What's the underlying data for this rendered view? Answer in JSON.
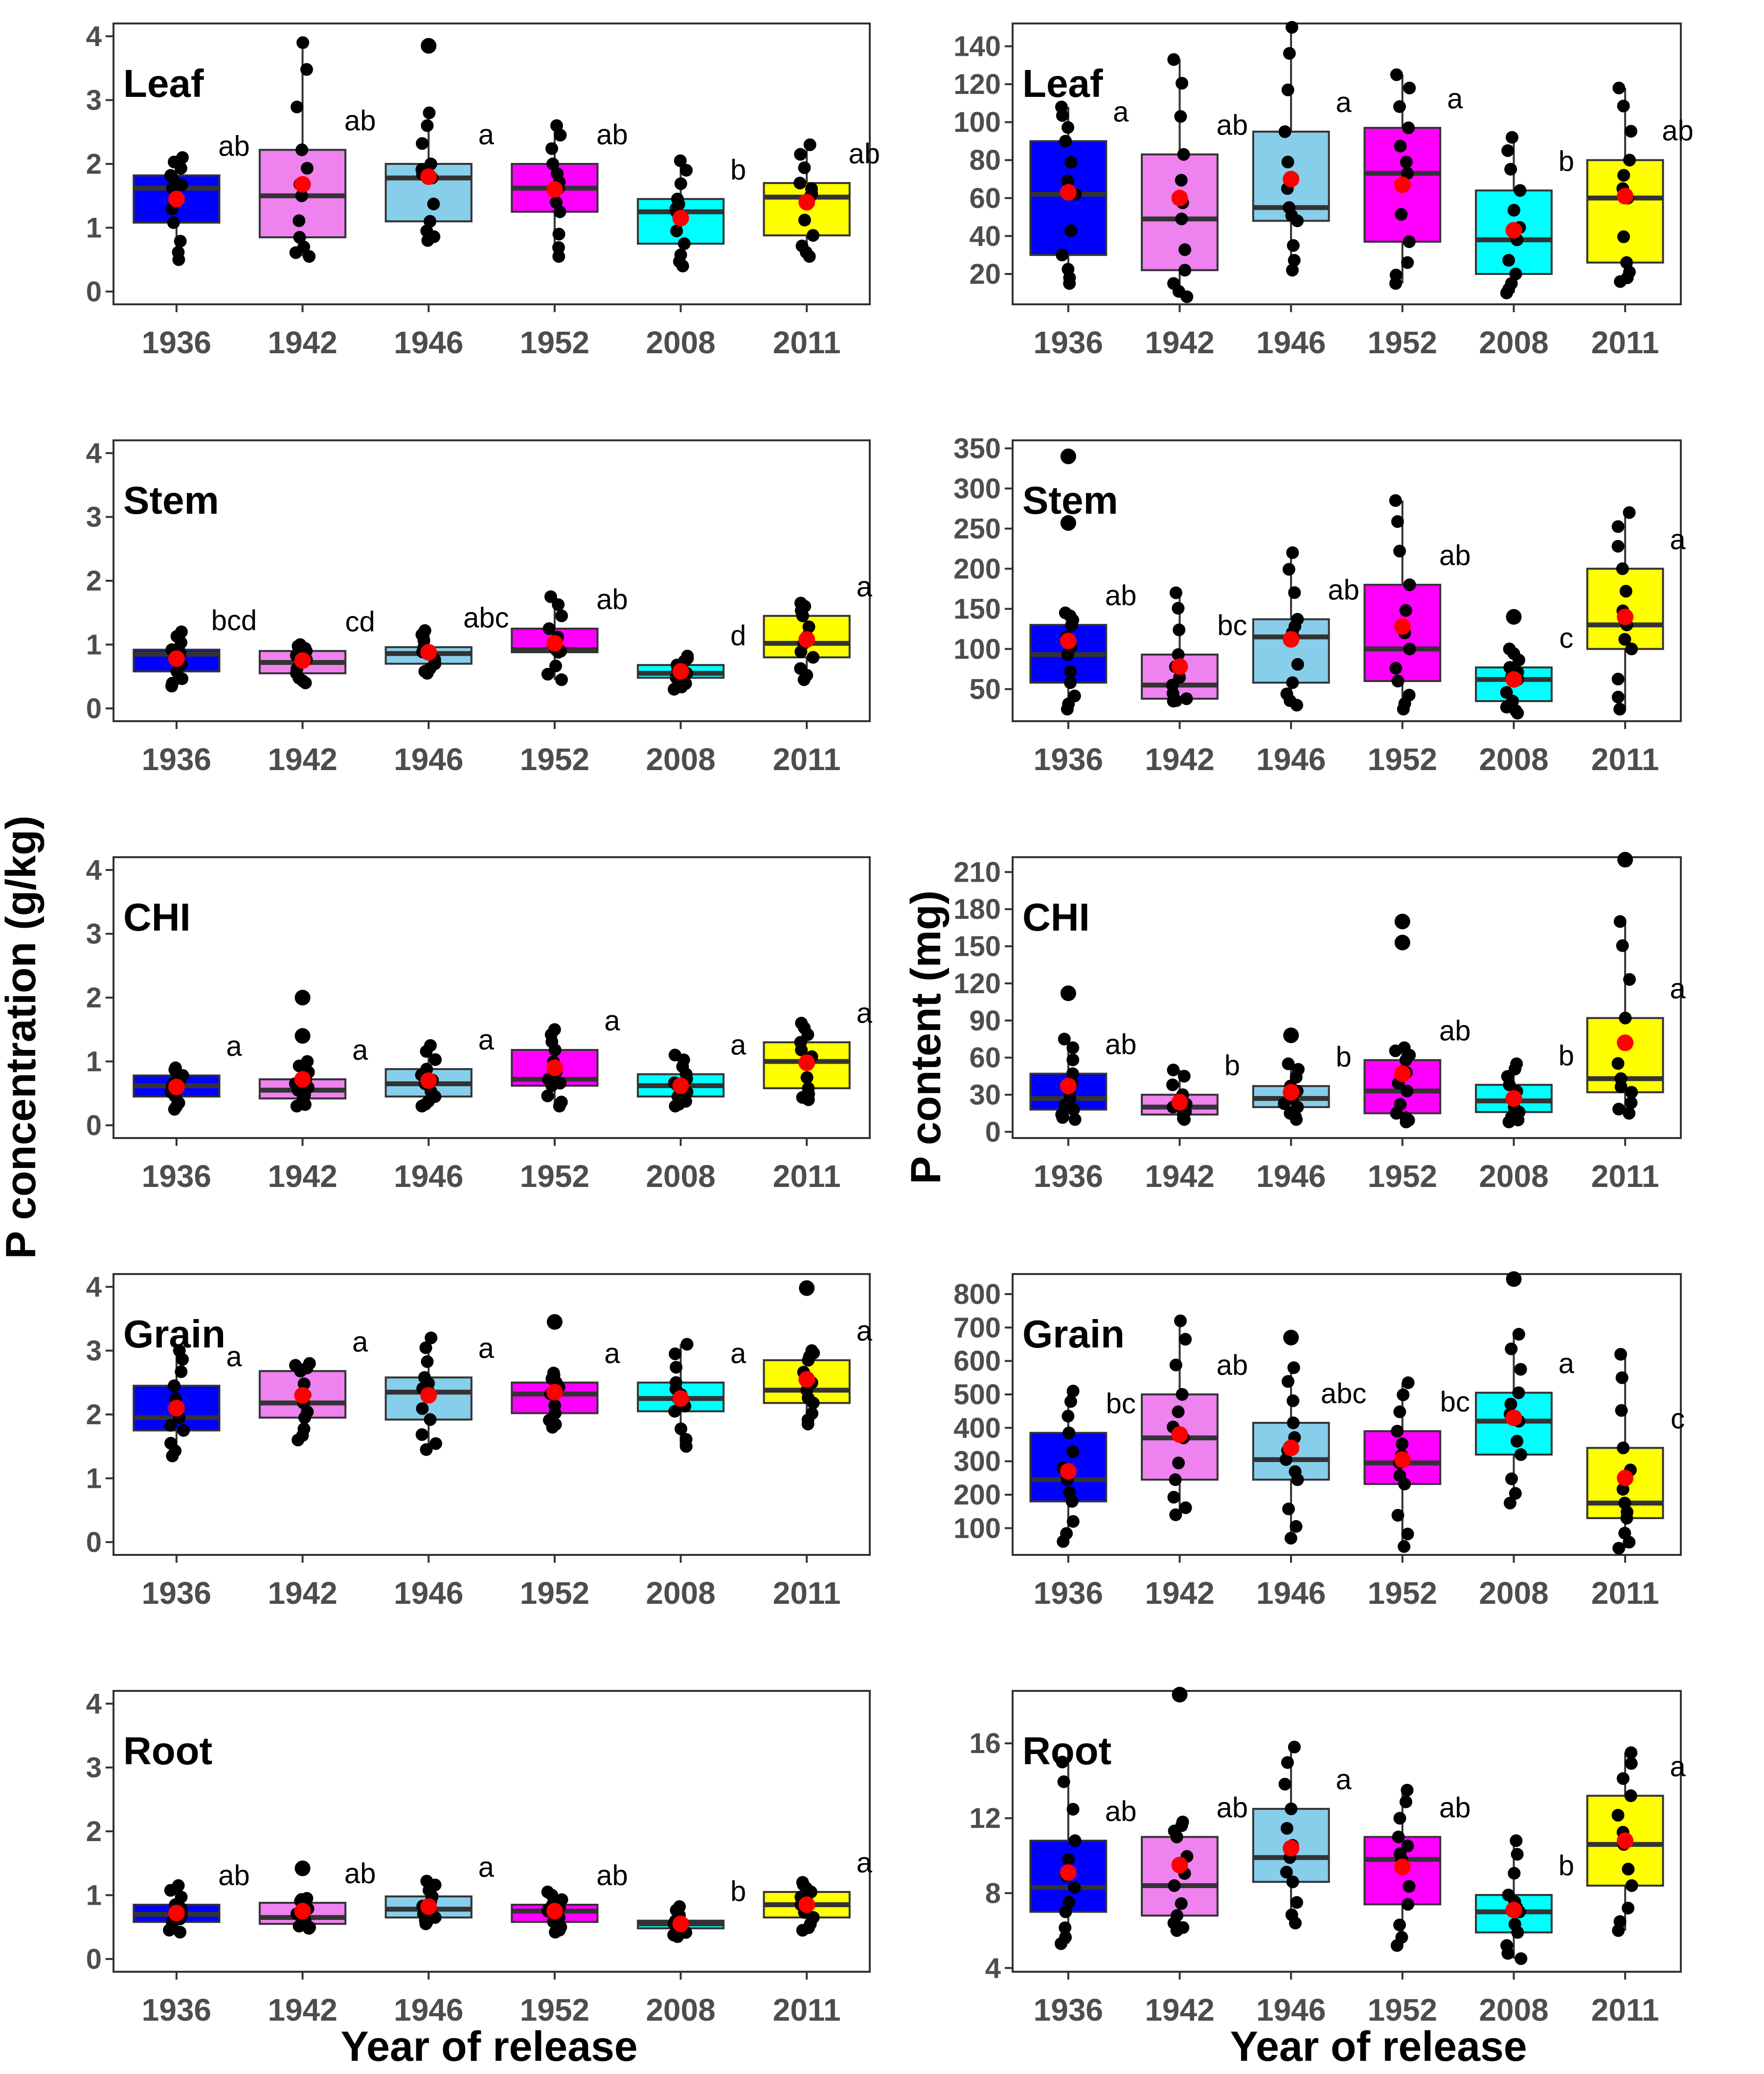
{
  "figure": {
    "left_ylabel": "P concentration (g/kg)",
    "right_ylabel": "P content (mg)",
    "xlabel": "Year of release"
  },
  "colors": {
    "1936": "#0000ff",
    "1942": "#ee82ee",
    "1946": "#87ceeb",
    "1952": "#ff00ff",
    "2008": "#00ffff",
    "2011": "#ffff00",
    "mean": "#ff0000",
    "point": "#000000",
    "median": "#333333"
  },
  "chart_data": [
    {
      "type": "box",
      "title": "Leaf",
      "column": "left",
      "row": 0,
      "ylabel": "P concentration (g/kg)",
      "xlabel": "Year of release",
      "categories": [
        "1936",
        "1942",
        "1946",
        "1952",
        "2008",
        "2011"
      ],
      "yticks": [
        0,
        1,
        2,
        3,
        4
      ],
      "ylim": [
        -0.2,
        4.2
      ],
      "boxes": [
        {
          "q1": 1.08,
          "median": 1.62,
          "q3": 1.82,
          "wlo": 0.5,
          "whi": 2.1,
          "mean": 1.45,
          "letter": "ab"
        },
        {
          "q1": 0.85,
          "median": 1.5,
          "q3": 2.22,
          "wlo": 0.55,
          "whi": 3.9,
          "mean": 1.68,
          "letter": "ab"
        },
        {
          "q1": 1.1,
          "median": 1.78,
          "q3": 2.0,
          "wlo": 0.8,
          "whi": 2.8,
          "mean": 1.8,
          "letter": "a"
        },
        {
          "q1": 1.25,
          "median": 1.62,
          "q3": 2.0,
          "wlo": 0.55,
          "whi": 2.6,
          "mean": 1.6,
          "letter": "ab"
        },
        {
          "q1": 0.75,
          "median": 1.25,
          "q3": 1.45,
          "wlo": 0.4,
          "whi": 2.05,
          "mean": 1.15,
          "letter": "b"
        },
        {
          "q1": 0.88,
          "median": 1.48,
          "q3": 1.7,
          "wlo": 0.55,
          "whi": 2.3,
          "mean": 1.4,
          "letter": "ab"
        }
      ],
      "outliers": [
        [],
        [],
        [
          3.85
        ],
        [],
        [],
        []
      ]
    },
    {
      "type": "box",
      "title": "Leaf",
      "column": "right",
      "row": 0,
      "ylabel": "P content (mg)",
      "xlabel": "Year of release",
      "categories": [
        "1936",
        "1942",
        "1946",
        "1952",
        "2008",
        "2011"
      ],
      "yticks": [
        20,
        40,
        60,
        80,
        100,
        120,
        140
      ],
      "ylim": [
        4,
        152
      ],
      "boxes": [
        {
          "q1": 30,
          "median": 62,
          "q3": 90,
          "wlo": 15,
          "whi": 108,
          "mean": 63,
          "letter": "a"
        },
        {
          "q1": 22,
          "median": 49,
          "q3": 83,
          "wlo": 8,
          "whi": 133,
          "mean": 60,
          "letter": "ab"
        },
        {
          "q1": 48,
          "median": 55,
          "q3": 95,
          "wlo": 22,
          "whi": 150,
          "mean": 70,
          "letter": "a"
        },
        {
          "q1": 37,
          "median": 73,
          "q3": 97,
          "wlo": 15,
          "whi": 125,
          "mean": 67,
          "letter": "a"
        },
        {
          "q1": 20,
          "median": 38,
          "q3": 64,
          "wlo": 10,
          "whi": 92,
          "mean": 43,
          "letter": "b"
        },
        {
          "q1": 26,
          "median": 60,
          "q3": 80,
          "wlo": 16,
          "whi": 118,
          "mean": 61,
          "letter": "ab"
        }
      ],
      "outliers": [
        [],
        [],
        [],
        [],
        [],
        []
      ]
    },
    {
      "type": "box",
      "title": "Stem",
      "column": "left",
      "row": 1,
      "ylabel": "P concentration (g/kg)",
      "xlabel": "Year of release",
      "categories": [
        "1936",
        "1942",
        "1946",
        "1952",
        "2008",
        "2011"
      ],
      "yticks": [
        0,
        1,
        2,
        3,
        4
      ],
      "ylim": [
        -0.2,
        4.2
      ],
      "boxes": [
        {
          "q1": 0.58,
          "median": 0.85,
          "q3": 0.92,
          "wlo": 0.35,
          "whi": 1.2,
          "mean": 0.78,
          "letter": "bcd"
        },
        {
          "q1": 0.55,
          "median": 0.72,
          "q3": 0.9,
          "wlo": 0.4,
          "whi": 1.0,
          "mean": 0.75,
          "letter": "cd"
        },
        {
          "q1": 0.7,
          "median": 0.86,
          "q3": 0.96,
          "wlo": 0.55,
          "whi": 1.22,
          "mean": 0.88,
          "letter": "abc"
        },
        {
          "q1": 0.88,
          "median": 0.92,
          "q3": 1.25,
          "wlo": 0.45,
          "whi": 1.75,
          "mean": 1.02,
          "letter": "ab"
        },
        {
          "q1": 0.48,
          "median": 0.55,
          "q3": 0.68,
          "wlo": 0.3,
          "whi": 0.82,
          "mean": 0.58,
          "letter": "d"
        },
        {
          "q1": 0.8,
          "median": 1.02,
          "q3": 1.45,
          "wlo": 0.45,
          "whi": 1.65,
          "mean": 1.08,
          "letter": "a"
        }
      ],
      "outliers": [
        [],
        [],
        [],
        [],
        [],
        []
      ]
    },
    {
      "type": "box",
      "title": "Stem",
      "column": "right",
      "row": 1,
      "ylabel": "P content (mg)",
      "xlabel": "Year of release",
      "categories": [
        "1936",
        "1942",
        "1946",
        "1952",
        "2008",
        "2011"
      ],
      "yticks": [
        50,
        100,
        150,
        200,
        250,
        300,
        350
      ],
      "ylim": [
        10,
        360
      ],
      "boxes": [
        {
          "q1": 58,
          "median": 93,
          "q3": 130,
          "wlo": 25,
          "whi": 145,
          "mean": 110,
          "letter": "ab"
        },
        {
          "q1": 38,
          "median": 55,
          "q3": 93,
          "wlo": 35,
          "whi": 170,
          "mean": 78,
          "letter": "bc"
        },
        {
          "q1": 58,
          "median": 115,
          "q3": 137,
          "wlo": 30,
          "whi": 220,
          "mean": 112,
          "letter": "ab"
        },
        {
          "q1": 60,
          "median": 100,
          "q3": 180,
          "wlo": 25,
          "whi": 285,
          "mean": 128,
          "letter": "ab"
        },
        {
          "q1": 35,
          "median": 62,
          "q3": 77,
          "wlo": 20,
          "whi": 100,
          "mean": 62,
          "letter": "c"
        },
        {
          "q1": 100,
          "median": 130,
          "q3": 200,
          "wlo": 25,
          "whi": 270,
          "mean": 140,
          "letter": "a"
        }
      ],
      "outliers": [
        [
          340,
          257
        ],
        [],
        [],
        [],
        [
          140
        ],
        []
      ]
    },
    {
      "type": "box",
      "title": "CHI",
      "column": "left",
      "row": 2,
      "ylabel": "P concentration (g/kg)",
      "xlabel": "Year of release",
      "categories": [
        "1936",
        "1942",
        "1946",
        "1952",
        "2008",
        "2011"
      ],
      "yticks": [
        0,
        1,
        2,
        3,
        4
      ],
      "ylim": [
        -0.2,
        4.2
      ],
      "boxes": [
        {
          "q1": 0.45,
          "median": 0.62,
          "q3": 0.78,
          "wlo": 0.25,
          "whi": 0.9,
          "mean": 0.6,
          "letter": "a"
        },
        {
          "q1": 0.42,
          "median": 0.55,
          "q3": 0.72,
          "wlo": 0.3,
          "whi": 1.0,
          "mean": 0.72,
          "letter": "a"
        },
        {
          "q1": 0.45,
          "median": 0.65,
          "q3": 0.88,
          "wlo": 0.3,
          "whi": 1.25,
          "mean": 0.7,
          "letter": "a"
        },
        {
          "q1": 0.62,
          "median": 0.72,
          "q3": 1.18,
          "wlo": 0.3,
          "whi": 1.5,
          "mean": 0.9,
          "letter": "a"
        },
        {
          "q1": 0.45,
          "median": 0.62,
          "q3": 0.8,
          "wlo": 0.3,
          "whi": 1.1,
          "mean": 0.62,
          "letter": "a"
        },
        {
          "q1": 0.58,
          "median": 1.0,
          "q3": 1.3,
          "wlo": 0.4,
          "whi": 1.6,
          "mean": 0.98,
          "letter": "a"
        }
      ],
      "outliers": [
        [],
        [
          2.0,
          1.4
        ],
        [],
        [],
        [],
        []
      ]
    },
    {
      "type": "box",
      "title": "CHI",
      "column": "right",
      "row": 2,
      "ylabel": "P content (mg)",
      "xlabel": "Year of release",
      "categories": [
        "1936",
        "1942",
        "1946",
        "1952",
        "2008",
        "2011"
      ],
      "yticks": [
        0,
        30,
        60,
        90,
        120,
        150,
        180,
        210
      ],
      "ylim": [
        -5,
        222
      ],
      "boxes": [
        {
          "q1": 18,
          "median": 27,
          "q3": 47,
          "wlo": 10,
          "whi": 75,
          "mean": 37,
          "letter": "ab"
        },
        {
          "q1": 14,
          "median": 20,
          "q3": 30,
          "wlo": 10,
          "whi": 50,
          "mean": 24,
          "letter": "b"
        },
        {
          "q1": 20,
          "median": 27,
          "q3": 37,
          "wlo": 10,
          "whi": 55,
          "mean": 32,
          "letter": "b"
        },
        {
          "q1": 15,
          "median": 33,
          "q3": 58,
          "wlo": 8,
          "whi": 68,
          "mean": 47,
          "letter": "ab"
        },
        {
          "q1": 16,
          "median": 25,
          "q3": 38,
          "wlo": 8,
          "whi": 55,
          "mean": 27,
          "letter": "b"
        },
        {
          "q1": 32,
          "median": 43,
          "q3": 92,
          "wlo": 15,
          "whi": 170,
          "mean": 72,
          "letter": "a"
        }
      ],
      "outliers": [
        [
          112
        ],
        [],
        [
          78
        ],
        [
          170,
          153
        ],
        [],
        [
          220
        ]
      ]
    },
    {
      "type": "box",
      "title": "Grain",
      "column": "left",
      "row": 3,
      "ylabel": "P concentration (g/kg)",
      "xlabel": "Year of release",
      "categories": [
        "1936",
        "1942",
        "1946",
        "1952",
        "2008",
        "2011"
      ],
      "yticks": [
        0,
        1,
        2,
        3,
        4
      ],
      "ylim": [
        -0.2,
        4.2
      ],
      "boxes": [
        {
          "q1": 1.75,
          "median": 1.95,
          "q3": 2.45,
          "wlo": 1.35,
          "whi": 3.0,
          "mean": 2.1,
          "letter": "a"
        },
        {
          "q1": 1.95,
          "median": 2.18,
          "q3": 2.68,
          "wlo": 1.6,
          "whi": 2.8,
          "mean": 2.3,
          "letter": "a"
        },
        {
          "q1": 1.92,
          "median": 2.35,
          "q3": 2.58,
          "wlo": 1.45,
          "whi": 3.2,
          "mean": 2.3,
          "letter": "a"
        },
        {
          "q1": 2.02,
          "median": 2.32,
          "q3": 2.5,
          "wlo": 1.8,
          "whi": 2.65,
          "mean": 2.35,
          "letter": "a"
        },
        {
          "q1": 2.05,
          "median": 2.25,
          "q3": 2.5,
          "wlo": 1.5,
          "whi": 3.1,
          "mean": 2.25,
          "letter": "a"
        },
        {
          "q1": 2.18,
          "median": 2.38,
          "q3": 2.85,
          "wlo": 1.85,
          "whi": 3.0,
          "mean": 2.55,
          "letter": "a"
        }
      ],
      "outliers": [
        [],
        [],
        [],
        [
          3.45
        ],
        [],
        [
          3.98
        ]
      ]
    },
    {
      "type": "box",
      "title": "Grain",
      "column": "right",
      "row": 3,
      "ylabel": "P content (mg)",
      "xlabel": "Year of release",
      "categories": [
        "1936",
        "1942",
        "1946",
        "1952",
        "2008",
        "2011"
      ],
      "yticks": [
        100,
        200,
        300,
        400,
        500,
        600,
        700,
        800
      ],
      "ylim": [
        20,
        860
      ],
      "boxes": [
        {
          "q1": 180,
          "median": 245,
          "q3": 385,
          "wlo": 60,
          "whi": 510,
          "mean": 270,
          "letter": "bc"
        },
        {
          "q1": 245,
          "median": 370,
          "q3": 500,
          "wlo": 140,
          "whi": 720,
          "mean": 380,
          "letter": "ab"
        },
        {
          "q1": 245,
          "median": 305,
          "q3": 415,
          "wlo": 70,
          "whi": 580,
          "mean": 340,
          "letter": "abc"
        },
        {
          "q1": 232,
          "median": 295,
          "q3": 390,
          "wlo": 45,
          "whi": 535,
          "mean": 305,
          "letter": "bc"
        },
        {
          "q1": 320,
          "median": 420,
          "q3": 505,
          "wlo": 175,
          "whi": 680,
          "mean": 430,
          "letter": "a"
        },
        {
          "q1": 130,
          "median": 175,
          "q3": 340,
          "wlo": 40,
          "whi": 620,
          "mean": 250,
          "letter": "c"
        }
      ],
      "outliers": [
        [],
        [],
        [
          670
        ],
        [],
        [
          845
        ],
        []
      ]
    },
    {
      "type": "box",
      "title": "Root",
      "column": "left",
      "row": 4,
      "ylabel": "P concentration (g/kg)",
      "xlabel": "Year of release",
      "categories": [
        "1936",
        "1942",
        "1946",
        "1952",
        "2008",
        "2011"
      ],
      "yticks": [
        0,
        1,
        2,
        3,
        4
      ],
      "ylim": [
        -0.2,
        4.2
      ],
      "boxes": [
        {
          "q1": 0.58,
          "median": 0.7,
          "q3": 0.85,
          "wlo": 0.42,
          "whi": 1.15,
          "mean": 0.72,
          "letter": "ab"
        },
        {
          "q1": 0.55,
          "median": 0.65,
          "q3": 0.88,
          "wlo": 0.48,
          "whi": 0.95,
          "mean": 0.75,
          "letter": "ab"
        },
        {
          "q1": 0.65,
          "median": 0.78,
          "q3": 0.98,
          "wlo": 0.55,
          "whi": 1.22,
          "mean": 0.82,
          "letter": "a"
        },
        {
          "q1": 0.58,
          "median": 0.75,
          "q3": 0.85,
          "wlo": 0.42,
          "whi": 1.05,
          "mean": 0.75,
          "letter": "ab"
        },
        {
          "q1": 0.48,
          "median": 0.55,
          "q3": 0.6,
          "wlo": 0.35,
          "whi": 0.82,
          "mean": 0.55,
          "letter": "b"
        },
        {
          "q1": 0.65,
          "median": 0.85,
          "q3": 1.05,
          "wlo": 0.45,
          "whi": 1.2,
          "mean": 0.85,
          "letter": "a"
        }
      ],
      "outliers": [
        [],
        [
          1.42
        ],
        [],
        [],
        [],
        []
      ]
    },
    {
      "type": "box",
      "title": "Root",
      "column": "right",
      "row": 4,
      "ylabel": "P content (mg)",
      "xlabel": "Year of release",
      "categories": [
        "1936",
        "1942",
        "1946",
        "1952",
        "2008",
        "2011"
      ],
      "yticks": [
        4,
        8,
        12,
        16
      ],
      "ylim": [
        3.8,
        18.8
      ],
      "boxes": [
        {
          "q1": 7.0,
          "median": 8.3,
          "q3": 10.8,
          "wlo": 5.3,
          "whi": 15.0,
          "mean": 9.1,
          "letter": "ab"
        },
        {
          "q1": 6.8,
          "median": 8.4,
          "q3": 11.0,
          "wlo": 6.0,
          "whi": 11.8,
          "mean": 9.5,
          "letter": "ab"
        },
        {
          "q1": 8.6,
          "median": 9.9,
          "q3": 12.5,
          "wlo": 6.4,
          "whi": 15.8,
          "mean": 10.4,
          "letter": "a"
        },
        {
          "q1": 7.4,
          "median": 9.8,
          "q3": 11.0,
          "wlo": 5.2,
          "whi": 13.5,
          "mean": 9.4,
          "letter": "ab"
        },
        {
          "q1": 5.9,
          "median": 7.0,
          "q3": 7.9,
          "wlo": 4.5,
          "whi": 10.8,
          "mean": 7.1,
          "letter": "b"
        },
        {
          "q1": 8.4,
          "median": 10.6,
          "q3": 13.2,
          "wlo": 6.0,
          "whi": 15.5,
          "mean": 10.8,
          "letter": "a"
        }
      ],
      "outliers": [
        [],
        [
          18.6
        ],
        [],
        [],
        [],
        []
      ]
    }
  ]
}
